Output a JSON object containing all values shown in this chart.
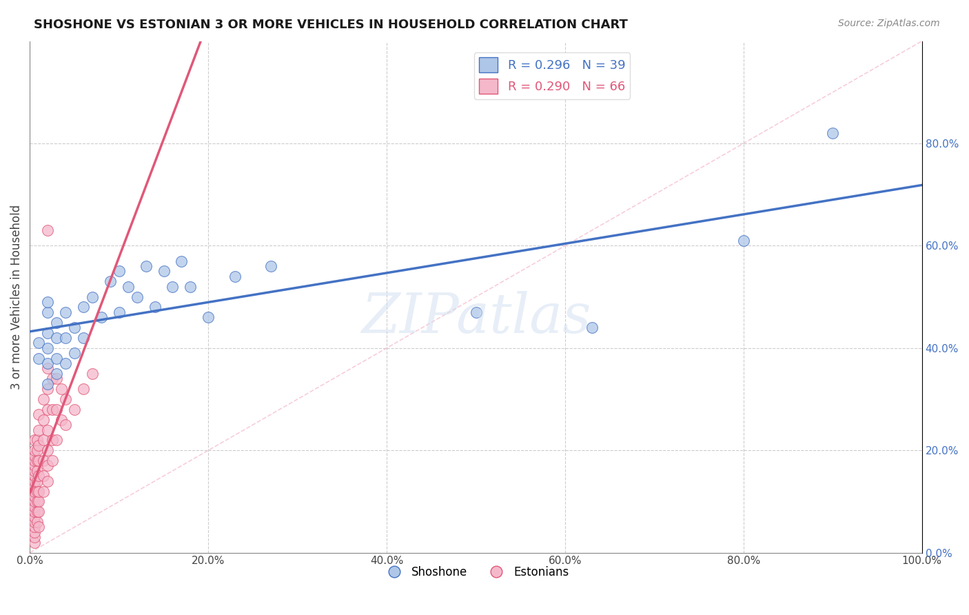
{
  "title": "SHOSHONE VS ESTONIAN 3 OR MORE VEHICLES IN HOUSEHOLD CORRELATION CHART",
  "source": "Source: ZipAtlas.com",
  "ylabel": "3 or more Vehicles in Household",
  "legend_shoshone": "Shoshone",
  "legend_estonian": "Estonians",
  "r_shoshone": 0.296,
  "n_shoshone": 39,
  "r_estonian": 0.29,
  "n_estonian": 66,
  "xlim": [
    0.0,
    1.0
  ],
  "ylim": [
    0.0,
    1.0
  ],
  "xticks": [
    0.0,
    0.2,
    0.4,
    0.6,
    0.8,
    1.0
  ],
  "yticks": [
    0.0,
    0.2,
    0.4,
    0.6,
    0.8
  ],
  "xticklabels": [
    "0.0%",
    "20.0%",
    "40.0%",
    "60.0%",
    "80.0%",
    "100.0%"
  ],
  "yticklabels": [
    "0.0%",
    "20.0%",
    "40.0%",
    "60.0%",
    "80.0%"
  ],
  "color_shoshone": "#aec6e8",
  "color_estonian": "#f5b8cb",
  "line_color_shoshone": "#4472c4",
  "line_color_estonian": "#e05878",
  "diagonal_color": "#f5b8cb",
  "background_color": "#ffffff",
  "grid_color": "#cccccc",
  "watermark": "ZIPatlas",
  "shoshone_x": [
    0.01,
    0.01,
    0.02,
    0.02,
    0.02,
    0.02,
    0.02,
    0.02,
    0.03,
    0.03,
    0.03,
    0.03,
    0.04,
    0.04,
    0.04,
    0.05,
    0.05,
    0.06,
    0.06,
    0.07,
    0.08,
    0.09,
    0.1,
    0.1,
    0.11,
    0.12,
    0.13,
    0.14,
    0.15,
    0.16,
    0.17,
    0.18,
    0.2,
    0.23,
    0.27,
    0.5,
    0.63,
    0.8,
    0.9
  ],
  "shoshone_y": [
    0.38,
    0.41,
    0.33,
    0.37,
    0.4,
    0.43,
    0.47,
    0.49,
    0.35,
    0.38,
    0.42,
    0.45,
    0.37,
    0.42,
    0.47,
    0.39,
    0.44,
    0.42,
    0.48,
    0.5,
    0.46,
    0.53,
    0.47,
    0.55,
    0.52,
    0.5,
    0.56,
    0.48,
    0.55,
    0.52,
    0.57,
    0.52,
    0.46,
    0.54,
    0.56,
    0.47,
    0.44,
    0.61,
    0.82
  ],
  "estonian_x": [
    0.005,
    0.005,
    0.005,
    0.005,
    0.005,
    0.005,
    0.005,
    0.005,
    0.005,
    0.005,
    0.005,
    0.005,
    0.005,
    0.005,
    0.005,
    0.005,
    0.005,
    0.005,
    0.005,
    0.005,
    0.008,
    0.008,
    0.008,
    0.008,
    0.008,
    0.008,
    0.008,
    0.008,
    0.008,
    0.01,
    0.01,
    0.01,
    0.01,
    0.01,
    0.01,
    0.01,
    0.01,
    0.015,
    0.015,
    0.015,
    0.015,
    0.015,
    0.015,
    0.02,
    0.02,
    0.02,
    0.02,
    0.02,
    0.02,
    0.02,
    0.025,
    0.025,
    0.025,
    0.025,
    0.03,
    0.03,
    0.03,
    0.035,
    0.035,
    0.04,
    0.04,
    0.05,
    0.06,
    0.07,
    0.02,
    0.01
  ],
  "estonian_y": [
    0.02,
    0.03,
    0.04,
    0.05,
    0.06,
    0.07,
    0.08,
    0.09,
    0.1,
    0.11,
    0.12,
    0.13,
    0.14,
    0.15,
    0.16,
    0.17,
    0.18,
    0.19,
    0.2,
    0.22,
    0.06,
    0.08,
    0.1,
    0.12,
    0.14,
    0.16,
    0.18,
    0.2,
    0.22,
    0.08,
    0.1,
    0.12,
    0.15,
    0.18,
    0.21,
    0.24,
    0.27,
    0.12,
    0.15,
    0.18,
    0.22,
    0.26,
    0.3,
    0.14,
    0.17,
    0.2,
    0.24,
    0.28,
    0.32,
    0.36,
    0.18,
    0.22,
    0.28,
    0.34,
    0.22,
    0.28,
    0.34,
    0.26,
    0.32,
    0.25,
    0.3,
    0.28,
    0.32,
    0.35,
    0.63,
    0.05
  ]
}
